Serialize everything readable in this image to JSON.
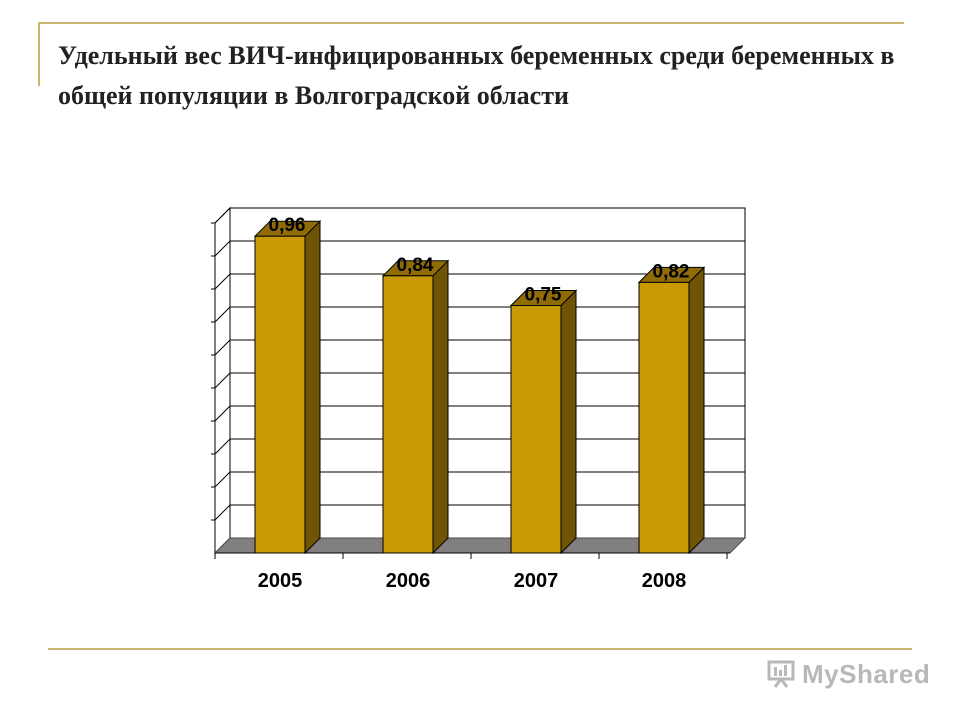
{
  "title": "Удельный вес ВИЧ-инфицированных беременных среди беременных в общей популяции в Волгоградской области",
  "watermark": "MyShared",
  "colors": {
    "bar_front": "#c99a06",
    "bar_side": "#6e5404",
    "bar_top": "#8f6c05",
    "floor": "#808080",
    "rule": "#c8b46a"
  },
  "chart_data": {
    "type": "bar",
    "categories": [
      "2005",
      "2006",
      "2007",
      "2008"
    ],
    "values": [
      0.96,
      0.84,
      0.75,
      0.82
    ],
    "data_labels": [
      "0,96",
      "0,84",
      "0,75",
      "0,82"
    ],
    "ylim": [
      0,
      1
    ],
    "grid": true,
    "legend": "none",
    "three_d": true
  }
}
